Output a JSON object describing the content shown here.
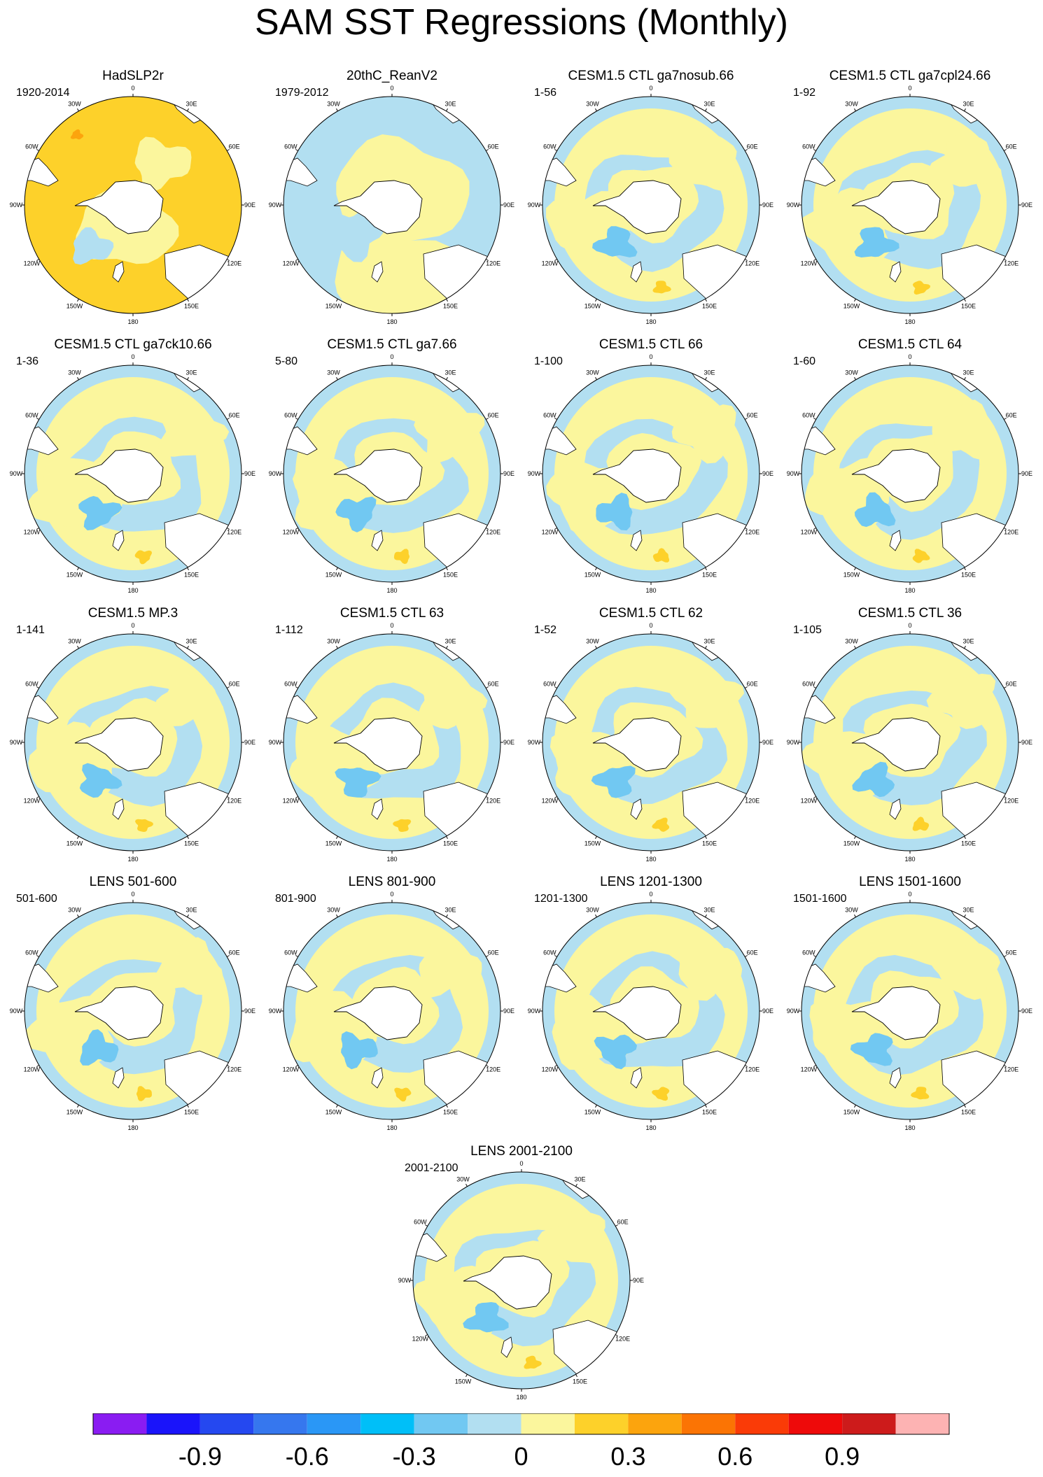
{
  "title": "SAM SST Regressions (Monthly)",
  "longitude_labels": [
    "0",
    "30E",
    "60E",
    "90E",
    "120E",
    "150E",
    "180",
    "150W",
    "120W",
    "90W",
    "60W",
    "30W"
  ],
  "panels": [
    {
      "title": "HadSLP2r",
      "period": "1920-2014",
      "style": "warm"
    },
    {
      "title": "20thC_ReanV2",
      "period": "1979-2012",
      "style": "cool"
    },
    {
      "title": "CESM1.5 CTL ga7nosub.66",
      "period": "1-56",
      "style": "model"
    },
    {
      "title": "CESM1.5 CTL ga7cpl24.66",
      "period": "1-92",
      "style": "model"
    },
    {
      "title": "CESM1.5 CTL ga7ck10.66",
      "period": "1-36",
      "style": "model"
    },
    {
      "title": "CESM1.5 CTL ga7.66",
      "period": "5-80",
      "style": "model"
    },
    {
      "title": "CESM1.5 CTL 66",
      "period": "1-100",
      "style": "model"
    },
    {
      "title": "CESM1.5 CTL 64",
      "period": "1-60",
      "style": "model"
    },
    {
      "title": "CESM1.5 MP.3",
      "period": "1-141",
      "style": "model"
    },
    {
      "title": "CESM1.5 CTL 63",
      "period": "1-112",
      "style": "model"
    },
    {
      "title": "CESM1.5 CTL 62",
      "period": "1-52",
      "style": "model"
    },
    {
      "title": "CESM1.5 CTL 36",
      "period": "1-105",
      "style": "model"
    },
    {
      "title": "LENS 501-600",
      "period": "501-600",
      "style": "model"
    },
    {
      "title": "LENS 801-900",
      "period": "801-900",
      "style": "model"
    },
    {
      "title": "LENS 1201-1300",
      "period": "1201-1300",
      "style": "model"
    },
    {
      "title": "LENS 1501-1600",
      "period": "1501-1600",
      "style": "model"
    },
    {
      "title": "LENS 2001-2100",
      "period": "2001-2100",
      "style": "model"
    }
  ],
  "colorbar": {
    "colors": [
      "#8a1cf2",
      "#1a14fa",
      "#2548f0",
      "#3677ee",
      "#2a97f6",
      "#00bff8",
      "#71c8f2",
      "#b2dff1",
      "#fbf69d",
      "#fdd12a",
      "#fca40d",
      "#fb7404",
      "#fa3b07",
      "#ee0a0a",
      "#cd1b1b",
      "#fdb3b3"
    ],
    "labels": [
      "-0.9",
      "-0.6",
      "-0.3",
      "0",
      "0.3",
      "0.6",
      "0.9"
    ]
  },
  "map_colors": {
    "ocean_positive": "#fbf69d",
    "ocean_negative": "#b2dff1",
    "ocean_negative_strong": "#71c8f2",
    "ocean_positive_strong": "#fdd12a",
    "ocean_positive_stronger": "#fca40d",
    "land": "#ffffff"
  }
}
